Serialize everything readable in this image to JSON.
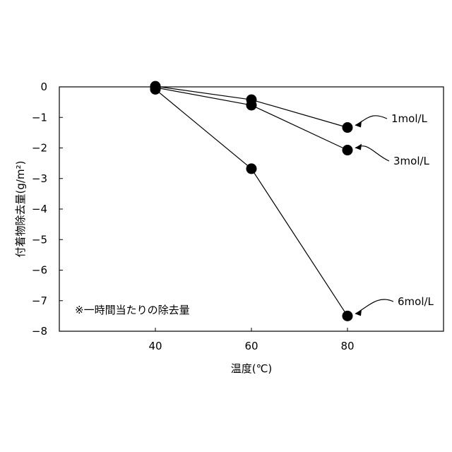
{
  "chart_data": {
    "type": "scatter",
    "xlabel": "温度(℃)",
    "ylabel": "付着物除去量(g/m²)",
    "note": "※一時間当たりの除去量",
    "x_ticks": [
      "40",
      "60",
      "80"
    ],
    "y_ticks": [
      "0",
      "-1",
      "-2",
      "-3",
      "-4",
      "-5",
      "-6",
      "-7",
      "-8"
    ],
    "xlim": [
      20,
      100
    ],
    "ylim": [
      -8,
      0
    ],
    "grid": false,
    "legend": "none",
    "series": [
      {
        "name": "1mol/L",
        "x": [
          40,
          60,
          80
        ],
        "y": [
          0.02,
          -0.42,
          -1.33
        ]
      },
      {
        "name": "3mol/L",
        "x": [
          40,
          60,
          80
        ],
        "y": [
          -0.02,
          -0.6,
          -2.07
        ]
      },
      {
        "name": "6mol/L",
        "x": [
          40,
          60,
          80
        ],
        "y": [
          -0.08,
          -2.68,
          -7.5
        ]
      }
    ],
    "marker_color": "#000000"
  }
}
